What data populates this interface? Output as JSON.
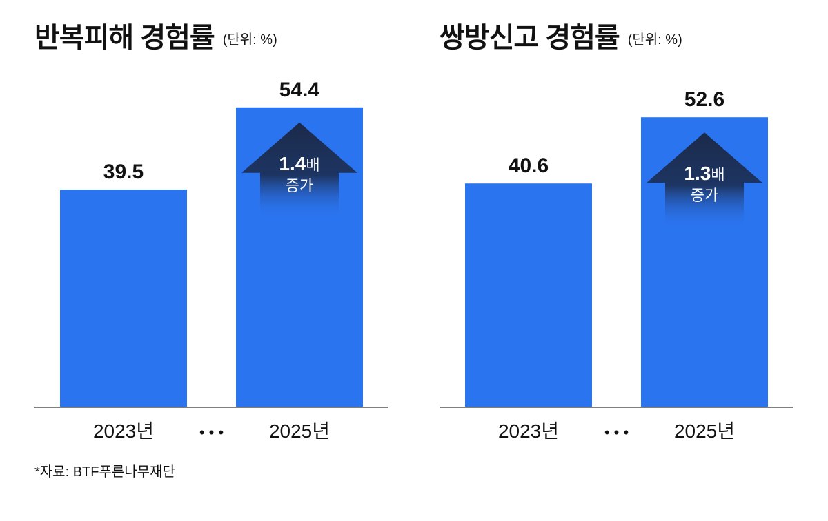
{
  "chart_data": [
    {
      "type": "bar",
      "title": "반복피해 경험률",
      "unit_label": "(단위: %)",
      "categories": [
        "2023년",
        "2025년"
      ],
      "values": [
        39.5,
        54.4
      ],
      "value_labels": [
        "39.5",
        "54.4"
      ],
      "ylim": [
        0,
        60
      ],
      "separator": "• • •",
      "annotation": {
        "multiplier": "1.4",
        "multiplier_unit": "배",
        "text": "증가"
      },
      "grid": false,
      "legend": "none"
    },
    {
      "type": "bar",
      "title": "쌍방신고 경험률",
      "unit_label": "(단위: %)",
      "categories": [
        "2023년",
        "2025년"
      ],
      "values": [
        40.6,
        52.6
      ],
      "value_labels": [
        "40.6",
        "52.6"
      ],
      "ylim": [
        0,
        60
      ],
      "separator": "• • •",
      "annotation": {
        "multiplier": "1.3",
        "multiplier_unit": "배",
        "text": "증가"
      },
      "grid": false,
      "legend": "none"
    }
  ],
  "colors": {
    "bar": "#2b74f0",
    "arrow_top": "#1b2a4a",
    "arrow_bottom": "#2b74f0",
    "axis": "#555555",
    "text": "#111111"
  },
  "footnote": "*자료: BTF푸른나무재단"
}
